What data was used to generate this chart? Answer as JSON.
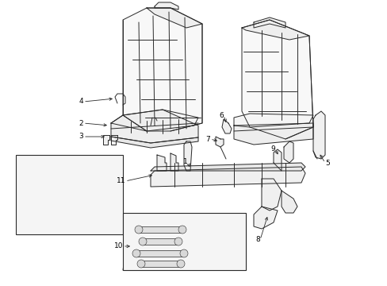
{
  "bg": "#ffffff",
  "lc": "#2a2a2a",
  "fig_w": 4.89,
  "fig_h": 3.6,
  "dpi": 100
}
